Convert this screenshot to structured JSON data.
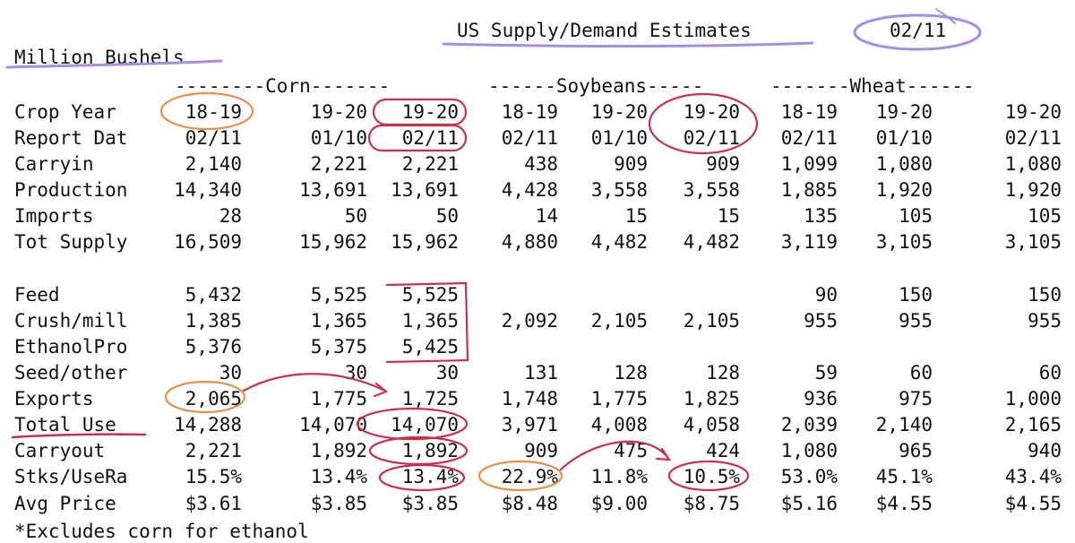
{
  "title": "US Supply/Demand Estimates",
  "date": "02/11",
  "units": "Million Bushels",
  "footnote": "*Excludes corn for ethanol",
  "groups": [
    {
      "label": "--------Corn-------"
    },
    {
      "label": "------Soybeans-----"
    },
    {
      "label": "-------Wheat------"
    }
  ],
  "rows": [
    {
      "label": "Crop Year",
      "values": [
        "18-19",
        "19-20",
        "19-20",
        "18-19",
        "19-20",
        "19-20",
        "18-19",
        "19-20",
        "19-20"
      ]
    },
    {
      "label": "Report Dat",
      "values": [
        "02/11",
        "01/10",
        "02/11",
        "02/11",
        "01/10",
        "02/11",
        "02/11",
        "01/10",
        "02/11"
      ]
    },
    {
      "label": "Carryin",
      "values": [
        "2,140",
        "2,221",
        "2,221",
        "438",
        "909",
        "909",
        "1,099",
        "1,080",
        "1,080"
      ]
    },
    {
      "label": "Production",
      "values": [
        "14,340",
        "13,691",
        "13,691",
        "4,428",
        "3,558",
        "3,558",
        "1,885",
        "1,920",
        "1,920"
      ]
    },
    {
      "label": "Imports",
      "values": [
        "28",
        "50",
        "50",
        "14",
        "15",
        "15",
        "135",
        "105",
        "105"
      ]
    },
    {
      "label": "Tot Supply",
      "values": [
        "16,509",
        "15,962",
        "15,962",
        "4,880",
        "4,482",
        "4,482",
        "3,119",
        "3,105",
        "3,105"
      ]
    },
    {
      "label": "Feed",
      "values": [
        "5,432",
        "5,525",
        "5,525",
        "",
        "",
        "",
        "90",
        "150",
        "150"
      ]
    },
    {
      "label": "Crush/mill",
      "values": [
        "1,385",
        "1,365",
        "1,365",
        "2,092",
        "2,105",
        "2,105",
        "955",
        "955",
        "955"
      ]
    },
    {
      "label": "EthanolPro",
      "values": [
        "5,376",
        "5,375",
        "5,425",
        "",
        "",
        "",
        "",
        "",
        ""
      ]
    },
    {
      "label": "Seed/other",
      "values": [
        "30",
        "30",
        "30",
        "131",
        "128",
        "128",
        "59",
        "60",
        "60"
      ]
    },
    {
      "label": "Exports",
      "values": [
        "2,065",
        "1,775",
        "1,725",
        "1,748",
        "1,775",
        "1,825",
        "936",
        "975",
        "1,000"
      ]
    },
    {
      "label": "Total Use",
      "values": [
        "14,288",
        "14,070",
        "14,070",
        "3,971",
        "4,008",
        "4,058",
        "2,039",
        "2,140",
        "2,165"
      ]
    },
    {
      "label": "Carryout",
      "values": [
        "2,221",
        "1,892",
        "1,892",
        "909",
        "475",
        "424",
        "1,080",
        "965",
        "940"
      ]
    },
    {
      "label": "Stks/UseRa",
      "values": [
        "15.5%",
        "13.4%",
        "13.4%",
        "22.9%",
        "11.8%",
        "10.5%",
        "53.0%",
        "45.1%",
        "43.4%"
      ]
    },
    {
      "label": "Avg Price",
      "values": [
        "$3.61",
        "$3.85",
        "$3.85",
        "$8.48",
        "$9.00",
        "$8.75",
        "$5.16",
        "$4.55",
        "$4.55"
      ]
    }
  ],
  "annotation_colors": {
    "purple": "#a98ce0",
    "orange": "#e8904a",
    "red": "#cc2f4e"
  }
}
